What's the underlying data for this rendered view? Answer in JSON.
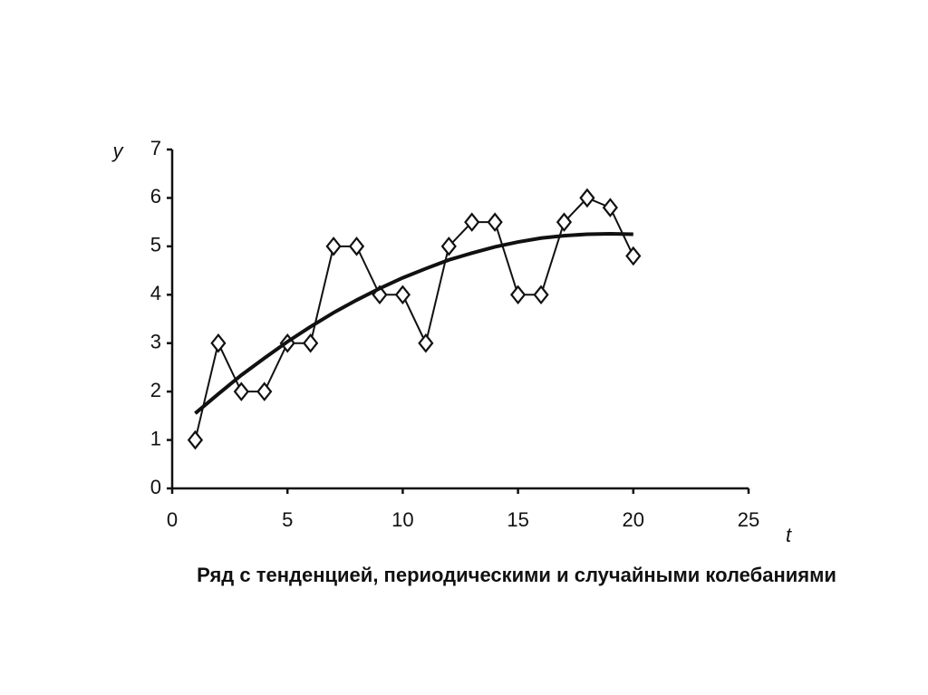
{
  "chart_data": {
    "type": "line",
    "title": "Ряд с тенденцией, периодическими и случайными колебаниями",
    "x_label": "t",
    "y_label": "y",
    "x": [
      1,
      2,
      3,
      4,
      5,
      6,
      7,
      8,
      9,
      10,
      11,
      12,
      13,
      14,
      15,
      16,
      17,
      18,
      19,
      20
    ],
    "series": [
      {
        "color": "#111111",
        "marker": "diamond",
        "values": [
          1,
          3,
          2,
          2,
          3,
          3,
          5,
          5,
          4,
          4,
          3,
          5,
          5.5,
          5.5,
          4,
          4,
          5.5,
          6,
          5.8,
          4.8
        ]
      },
      {
        "color": "#111111",
        "marker": "none",
        "values": [
          1.55,
          1.95,
          2.34,
          2.69,
          3.03,
          3.34,
          3.63,
          3.89,
          4.13,
          4.35,
          4.54,
          4.72,
          4.86,
          4.99,
          5.09,
          5.17,
          5.22,
          5.25,
          5.26,
          5.25
        ]
      }
    ],
    "xlim": [
      0,
      25
    ],
    "xticks": [
      0,
      5,
      10,
      15,
      20,
      25
    ],
    "ylim": [
      0,
      7
    ],
    "yticks": [
      0,
      1,
      2,
      3,
      4,
      5,
      6,
      7
    ],
    "grid": false
  }
}
